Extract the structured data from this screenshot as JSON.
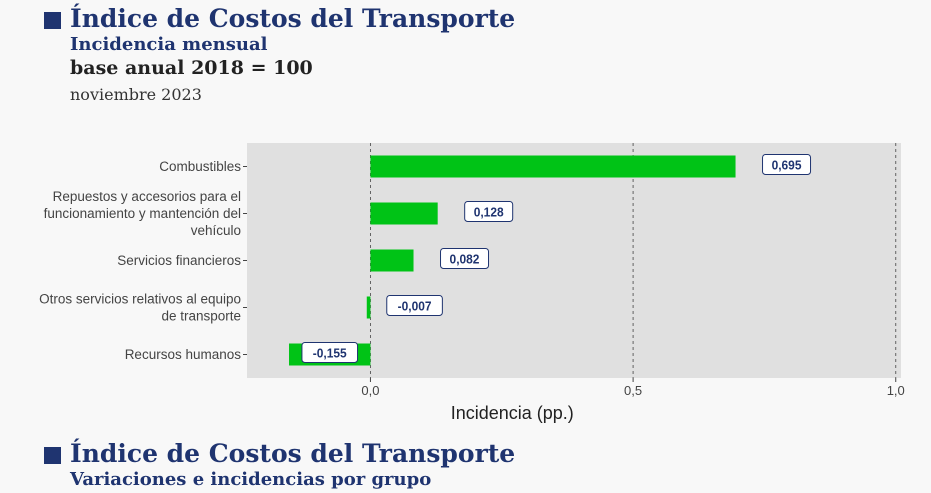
{
  "header1": {
    "title": "Índice de Costos del Transporte",
    "subtitle": "Incidencia mensual",
    "base": "base anual 2018 = 100",
    "date": "noviembre 2023"
  },
  "header2": {
    "title": "Índice de Costos del Transporte",
    "subtitle": "Variaciones e incidencias por grupo"
  },
  "colors": {
    "bar": "#00c316",
    "panel": "#e0e0e0",
    "label_text": "#1f3470",
    "title": "#1f3470"
  },
  "chart_data": {
    "type": "bar",
    "orientation": "horizontal",
    "categories": [
      [
        "Combustibles"
      ],
      [
        "Repuestos y accesorios para el",
        "funcionamiento y mantención del",
        "vehículo"
      ],
      [
        "Servicios financieros"
      ],
      [
        "Otros servicios relativos al equipo",
        "de transporte"
      ],
      [
        "Recursos humanos"
      ]
    ],
    "values": [
      0.695,
      0.128,
      0.082,
      -0.007,
      -0.155
    ],
    "value_labels": [
      "0,695",
      "0,128",
      "0,082",
      "-0,007",
      "-0,155"
    ],
    "xlabel": "Incidencia (pp.)",
    "xlim": [
      -0.235,
      1.01
    ],
    "xticks": [
      0.0,
      0.5,
      1.0
    ],
    "xtick_labels": [
      "0,0",
      "0,5",
      "1,0"
    ],
    "grid": "vertical dashed at ticks"
  }
}
